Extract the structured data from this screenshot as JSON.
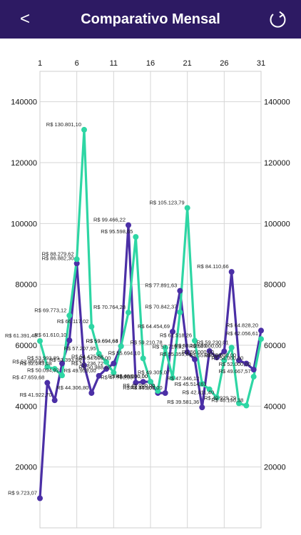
{
  "header": {
    "title": "Comparativo Mensal",
    "back_icon": "chevron-left-icon",
    "refresh_icon": "refresh-icon",
    "background": "#2d1a63"
  },
  "chart_data": {
    "type": "line",
    "title": "",
    "xlabel": "",
    "ylabel": "",
    "x": [
      1,
      2,
      3,
      4,
      5,
      6,
      7,
      8,
      9,
      10,
      11,
      12,
      13,
      14,
      15,
      16,
      17,
      18,
      19,
      20,
      21,
      22,
      23,
      24,
      25,
      26,
      27,
      28,
      29,
      30,
      31
    ],
    "xlim": [
      1,
      31
    ],
    "ylim": [
      0,
      150000
    ],
    "x_ticks": [
      "1",
      "6",
      "11",
      "16",
      "21",
      "26",
      "31"
    ],
    "y_ticks": [
      "20000",
      "40000",
      "60000",
      "80000",
      "100000",
      "120000",
      "140000"
    ],
    "grid": true,
    "legend": "none",
    "series": [
      {
        "color": "#4b2fa6",
        "values": [
          9723.07,
          47659.68,
          41922.7,
          53993.89,
          61610.1,
          86882.3,
          53393.89,
          44306.8,
          49959.0,
          52236.72,
          54000.0,
          59694.64,
          99466.22,
          47700.0,
          48000.0,
          48000.0,
          44305.07,
          44300.0,
          64454.69,
          77891.63,
          57719.92,
          55359.84,
          39581.36,
          58109.05,
          56000.0,
          58000.0,
          84110.66,
          55000.0,
          54000.0,
          52000.0,
          64828.2
        ],
        "labels": [
          "R$ 9.723,07",
          "R$ 47.659,68",
          "R$ 41.922,70",
          "R$ 53.993,89",
          "R$ 61.610,10",
          "R$ 86.882,30",
          "R$ 53.393,89",
          "R$ 44.306,80",
          "R$ 49.959,00",
          "R$ 52.236,72",
          "R$ 54.000,00",
          "R$ 59.694,64",
          "R$ 99.466,22",
          "R$ 47.700,00",
          "R$ 48.000,00",
          "R$ 48.000,00",
          "R$ 44.305,07",
          "R$ 44.300,00",
          "R$ 64.454,69",
          "R$ 77.891,63",
          "R$ 57.719,92",
          "R$ 55.359,84",
          "R$ 39.581,36",
          "R$ 58.109,05",
          "R$ 56.000,00",
          "R$ 58.000,00",
          "R$ 84.110,66",
          "R$ 55.000,00",
          "R$ 54.000,00",
          "R$ 52.000,00",
          "R$ 64.828,20"
        ]
      },
      {
        "color": "#2ed6a4",
        "values": [
          61391.48,
          52909.66,
          52243.08,
          50094.92,
          69773.12,
          88279.62,
          130801.1,
          66117.02,
          57207.95,
          54475.58,
          50988.62,
          59694.68,
          70764.28,
          95598.65,
          55694.1,
          48000.0,
          45000.0,
          59210.78,
          49305.07,
          70842.37,
          105123.79,
          61518.26,
          47346.12,
          45514.61,
          42811.4,
          55000.0,
          59230.01,
          40929.79,
          40190.38,
          49667.57,
          62056.61
        ],
        "labels": [
          "R$ 61.391,48",
          "R$ 52.909,66",
          "R$ 52.243,08",
          "R$ 50.094,92",
          "R$ 69.773,12",
          "R$ 88.279,62",
          "R$ 130.801,10",
          "R$ 66.117,02",
          "R$ 57.207,95",
          "R$ 54.475,58",
          "R$ 50.988,62",
          "R$ 59.694,68",
          "R$ 70.764,28",
          "R$ 95.598,65",
          "R$ 55.694,10",
          "R$ 48.000,00",
          "R$ 45.000,00",
          "R$ 59.210,78",
          "R$ 49.305,07",
          "R$ 70.842,37",
          "R$ 105.123,79",
          "R$ 61.518,26",
          "R$ 47.346,12",
          "R$ 45.514,61",
          "R$ 42.811,40",
          "R$ 55.000,00",
          "R$ 59.230,01",
          "R$ 40.929,79",
          "R$ 40.190,38",
          "R$ 49.667,57",
          "R$ 62.056,61"
        ]
      }
    ]
  }
}
